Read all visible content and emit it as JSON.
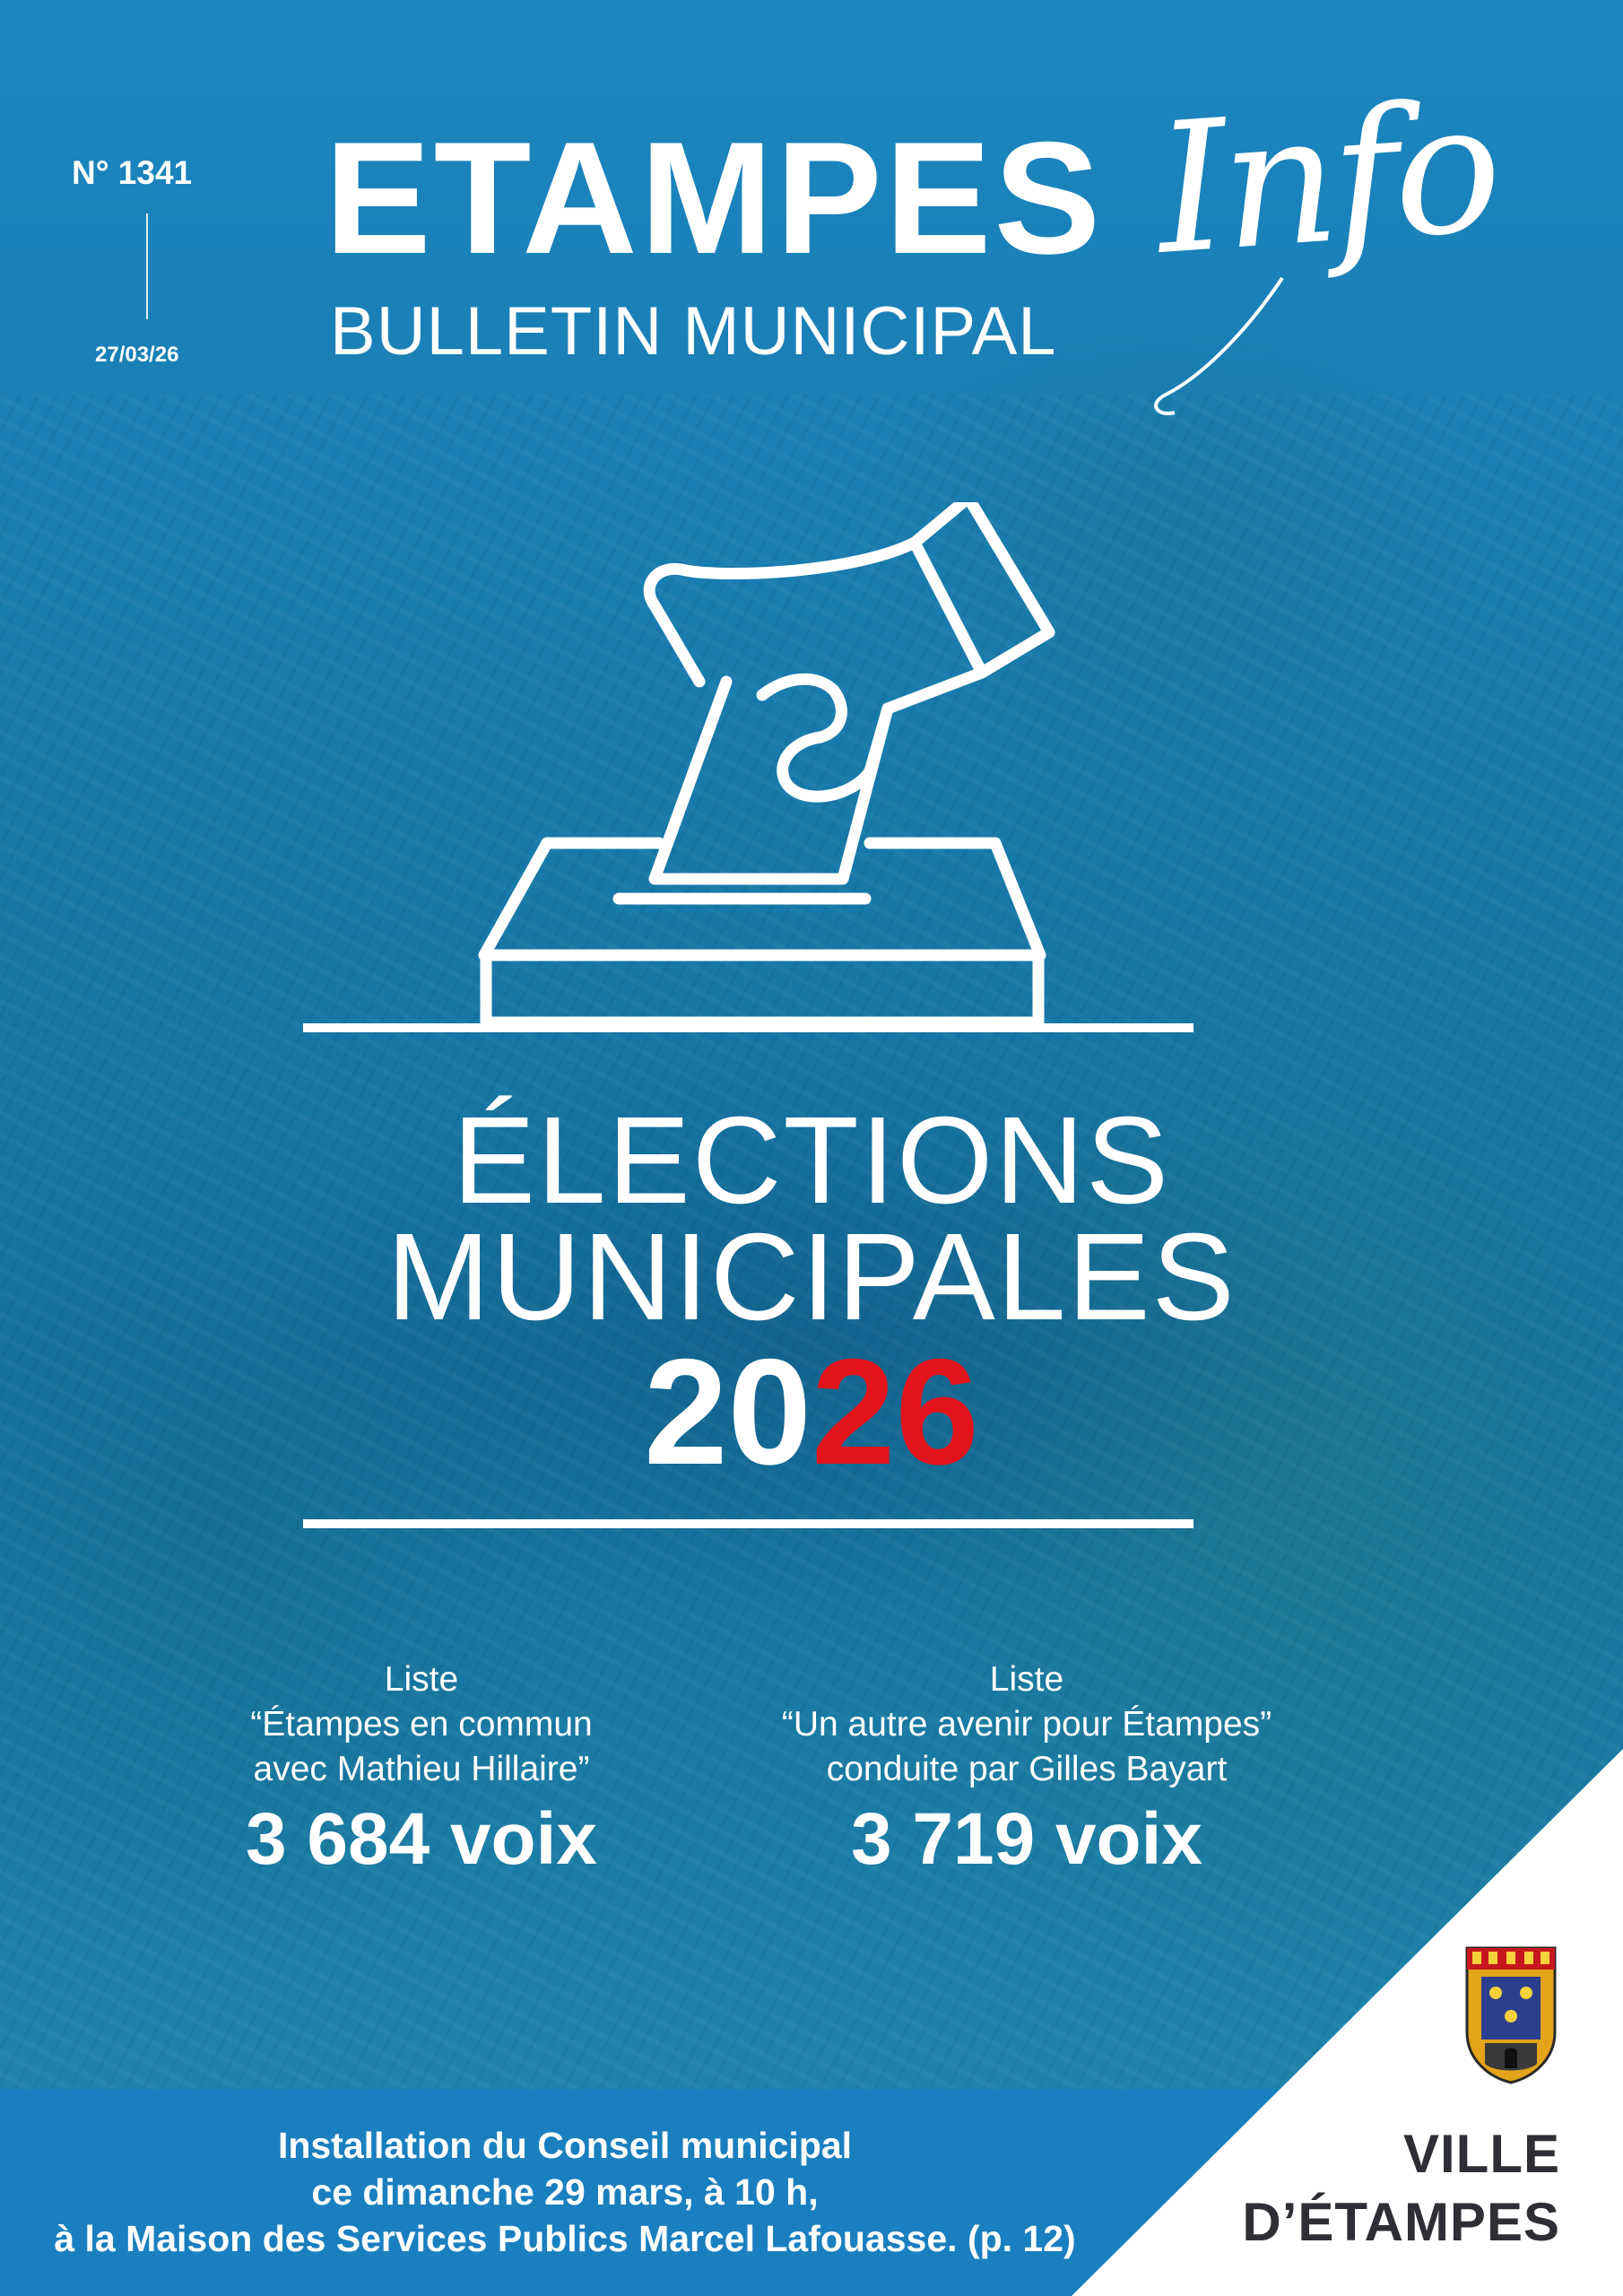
{
  "header": {
    "issue_number": "N° 1341",
    "issue_date": "27/03/26",
    "title": "ETAMPES",
    "script_word": "Info",
    "subtitle": "BULLETIN MUNICIPAL"
  },
  "election": {
    "line1": "ÉLECTIONS",
    "line2": "MUNICIPALES",
    "year_part1": "20",
    "year_part2": "26",
    "accent_color": "#e2131b"
  },
  "icon": "ballot-box-hand-icon",
  "results": [
    {
      "line1": "Liste",
      "line2": "“Étampes en commun",
      "line3": "avec Mathieu Hillaire”",
      "votes": "3 684 voix"
    },
    {
      "line1": "Liste",
      "line2": "“Un autre avenir pour Étampes”",
      "line3": "conduite par Gilles Bayart",
      "votes": "3 719 voix"
    }
  ],
  "announcement": {
    "line1": "Installation du Conseil municipal",
    "line2": "ce dimanche 29 mars, à 10 h,",
    "line3": "à la Maison des Services Publics Marcel Lafouasse. (p. 12)"
  },
  "city": {
    "line1": "VILLE",
    "line2": "D’ÉTAMPES",
    "crest_icon": "city-coat-of-arms-icon"
  },
  "colors": {
    "background": "#1a7fb2",
    "band": "#1a7fbf",
    "city_text": "#2e2e35"
  }
}
